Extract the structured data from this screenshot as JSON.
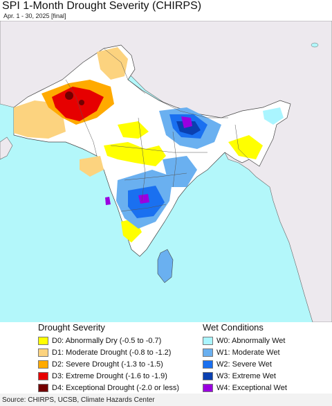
{
  "header": {
    "title": "SPI 1-Month Drought Severity (CHIRPS)",
    "subtitle": "Apr. 1 - 30, 2025 [final]"
  },
  "map": {
    "colors": {
      "ocean": "#b3f7fa",
      "land_outside": "#ede9ee",
      "region_base": "#ffffff",
      "borders": "#555555"
    }
  },
  "legend": {
    "drought": {
      "title": "Drought Severity",
      "items": [
        {
          "label": "D0: Abnormally Dry (-0.5 to -0.7)",
          "color": "#ffff00"
        },
        {
          "label": "D1: Moderate Drought (-0.8 to -1.2)",
          "color": "#fcd37f"
        },
        {
          "label": "D2: Severe Drought (-1.3 to -1.5)",
          "color": "#ffaa00"
        },
        {
          "label": "D3: Extreme Drought (-1.6 to -1.9)",
          "color": "#e60000"
        },
        {
          "label": "D4: Exceptional Drought (-2.0 or less)",
          "color": "#730000"
        }
      ]
    },
    "wet": {
      "title": "Wet Conditions",
      "items": [
        {
          "label": "W0: Abnormally Wet",
          "color": "#aaf5ff"
        },
        {
          "label": "W1: Moderate Wet",
          "color": "#6ab0f0"
        },
        {
          "label": "W2: Severe Wet",
          "color": "#1a70f0"
        },
        {
          "label": "W3: Extreme Wet",
          "color": "#0a40b0"
        },
        {
          "label": "W4: Exceptional Wet",
          "color": "#9a00e0"
        }
      ]
    }
  },
  "footer": {
    "source": "Source: CHIRPS, UCSB, Climate Hazards Center"
  }
}
